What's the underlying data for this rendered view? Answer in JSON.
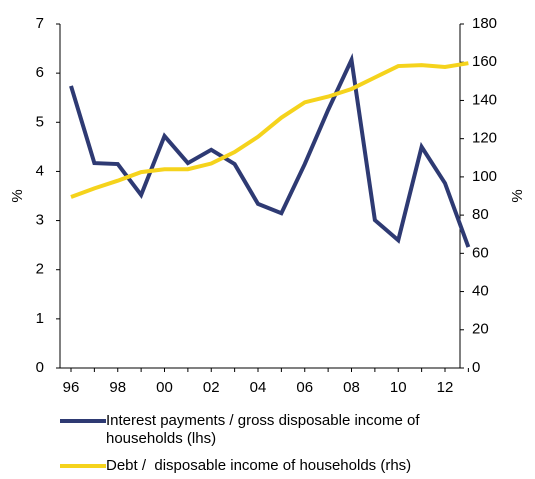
{
  "chart_data": {
    "type": "line",
    "categories": [
      "96",
      null,
      "98",
      null,
      "00",
      null,
      "02",
      null,
      "04",
      null,
      "06",
      null,
      "08",
      null,
      "10",
      null,
      "12",
      null
    ],
    "ylabel": "%",
    "y2label": "%",
    "ylim": [
      0,
      7
    ],
    "yticks": [
      0,
      1,
      2,
      3,
      4,
      5,
      6,
      7
    ],
    "y2lim": [
      0,
      180
    ],
    "y2ticks": [
      0,
      20,
      40,
      60,
      80,
      100,
      120,
      140,
      160,
      180
    ],
    "series": [
      {
        "name": "Interest payments / gross disposable income of households (lhs)",
        "color": "#2e3a73",
        "axis": "y",
        "values": [
          5.74,
          4.17,
          4.15,
          3.52,
          4.72,
          4.17,
          4.44,
          4.15,
          3.34,
          3.15,
          4.15,
          5.25,
          6.27,
          3.01,
          2.6,
          4.5,
          3.76,
          2.46
        ]
      },
      {
        "name": "Debt /  disposable income of households (rhs)",
        "color": "#f5d31c",
        "axis": "y2",
        "values": [
          89.5,
          94,
          98,
          102.5,
          104,
          104,
          107,
          113,
          121,
          131,
          139,
          142,
          146,
          152,
          158,
          158.5,
          157.5,
          159.5
        ]
      }
    ]
  }
}
